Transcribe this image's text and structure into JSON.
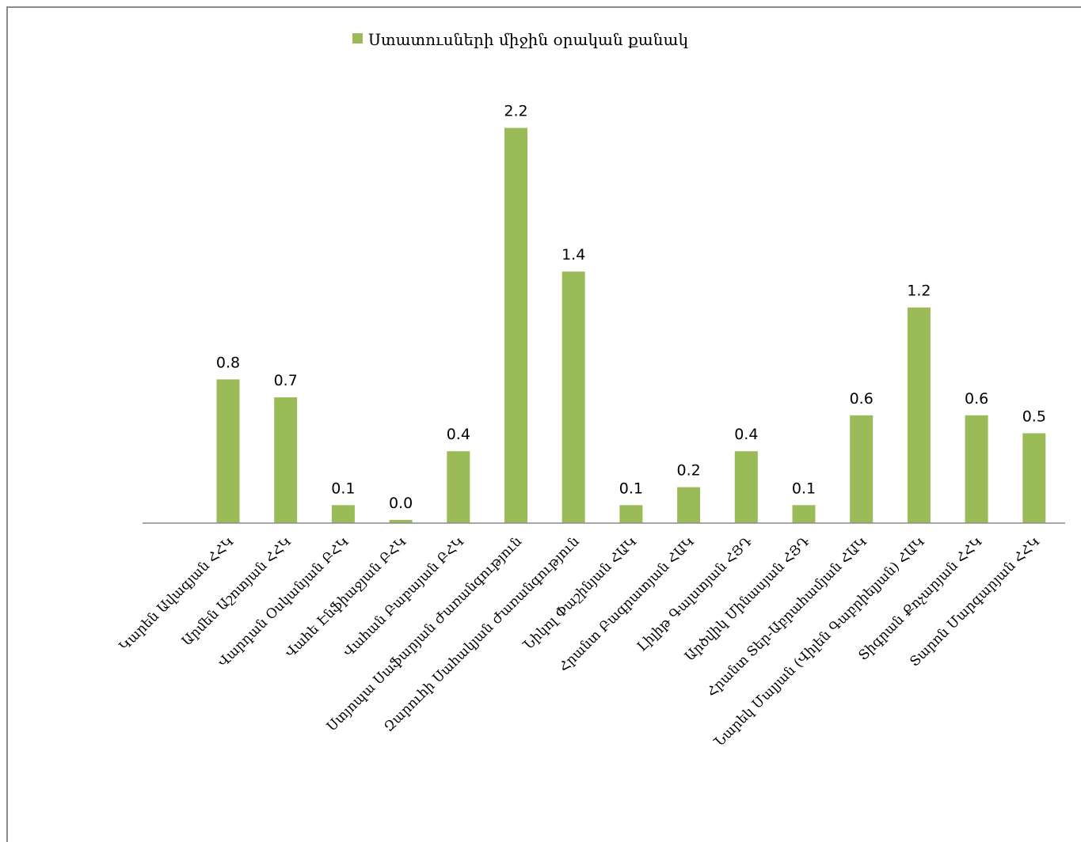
{
  "chart_data": {
    "type": "bar",
    "series": [
      {
        "name": "Ստատուսների միջին օրական քանակ",
        "values": [
          0.8,
          0.7,
          0.1,
          0.0,
          0.4,
          2.2,
          1.4,
          0.1,
          0.2,
          0.4,
          0.1,
          0.6,
          1.2,
          0.6,
          0.5
        ]
      }
    ],
    "categories": [
      "Կարեն Ավագյան ՀՀԿ",
      "Արմեն Աշոտյան ՀՀԿ",
      "Վարդան Օսկանյան ԲՀԿ",
      "Վահե Էնֆիաջյան ԲՀԿ",
      "Վահան Բաբայան ԲՀԿ",
      "Ստյոպա Սաֆարյան Ժառանգություն",
      "Զարուհի Սահակյան Ժառանգություն",
      "Նիկոլ Փաշինյան ՀԱԿ",
      "Հրանտ Բագրատյան ՀԱԿ",
      "Լիլիթ Գալստյան ՀՅԴ",
      "Արծվիկ Մինասյան ՀՅԴ",
      "Հրանտ Տեր-Աբրահամյան ՀԱԿ",
      "Նարեկ Մալյան (Վիլեն Գաբրիելյան) ՀԱԿ",
      "Տիգրան Քոչարյան ՀՀԿ",
      "Տարոն Մարգարյան ՀՀԿ"
    ],
    "data_labels": [
      "0.8",
      "0.7",
      "0.1",
      "0.0",
      "0.4",
      "2.2",
      "1.4",
      "0.1",
      "0.2",
      "0.4",
      "0.1",
      "0.6",
      "1.2",
      "0.6",
      "0.5"
    ],
    "legend_position": "top",
    "grid": false,
    "bar_color": "#9bbb59",
    "axis_color": "#8c8c8c"
  }
}
